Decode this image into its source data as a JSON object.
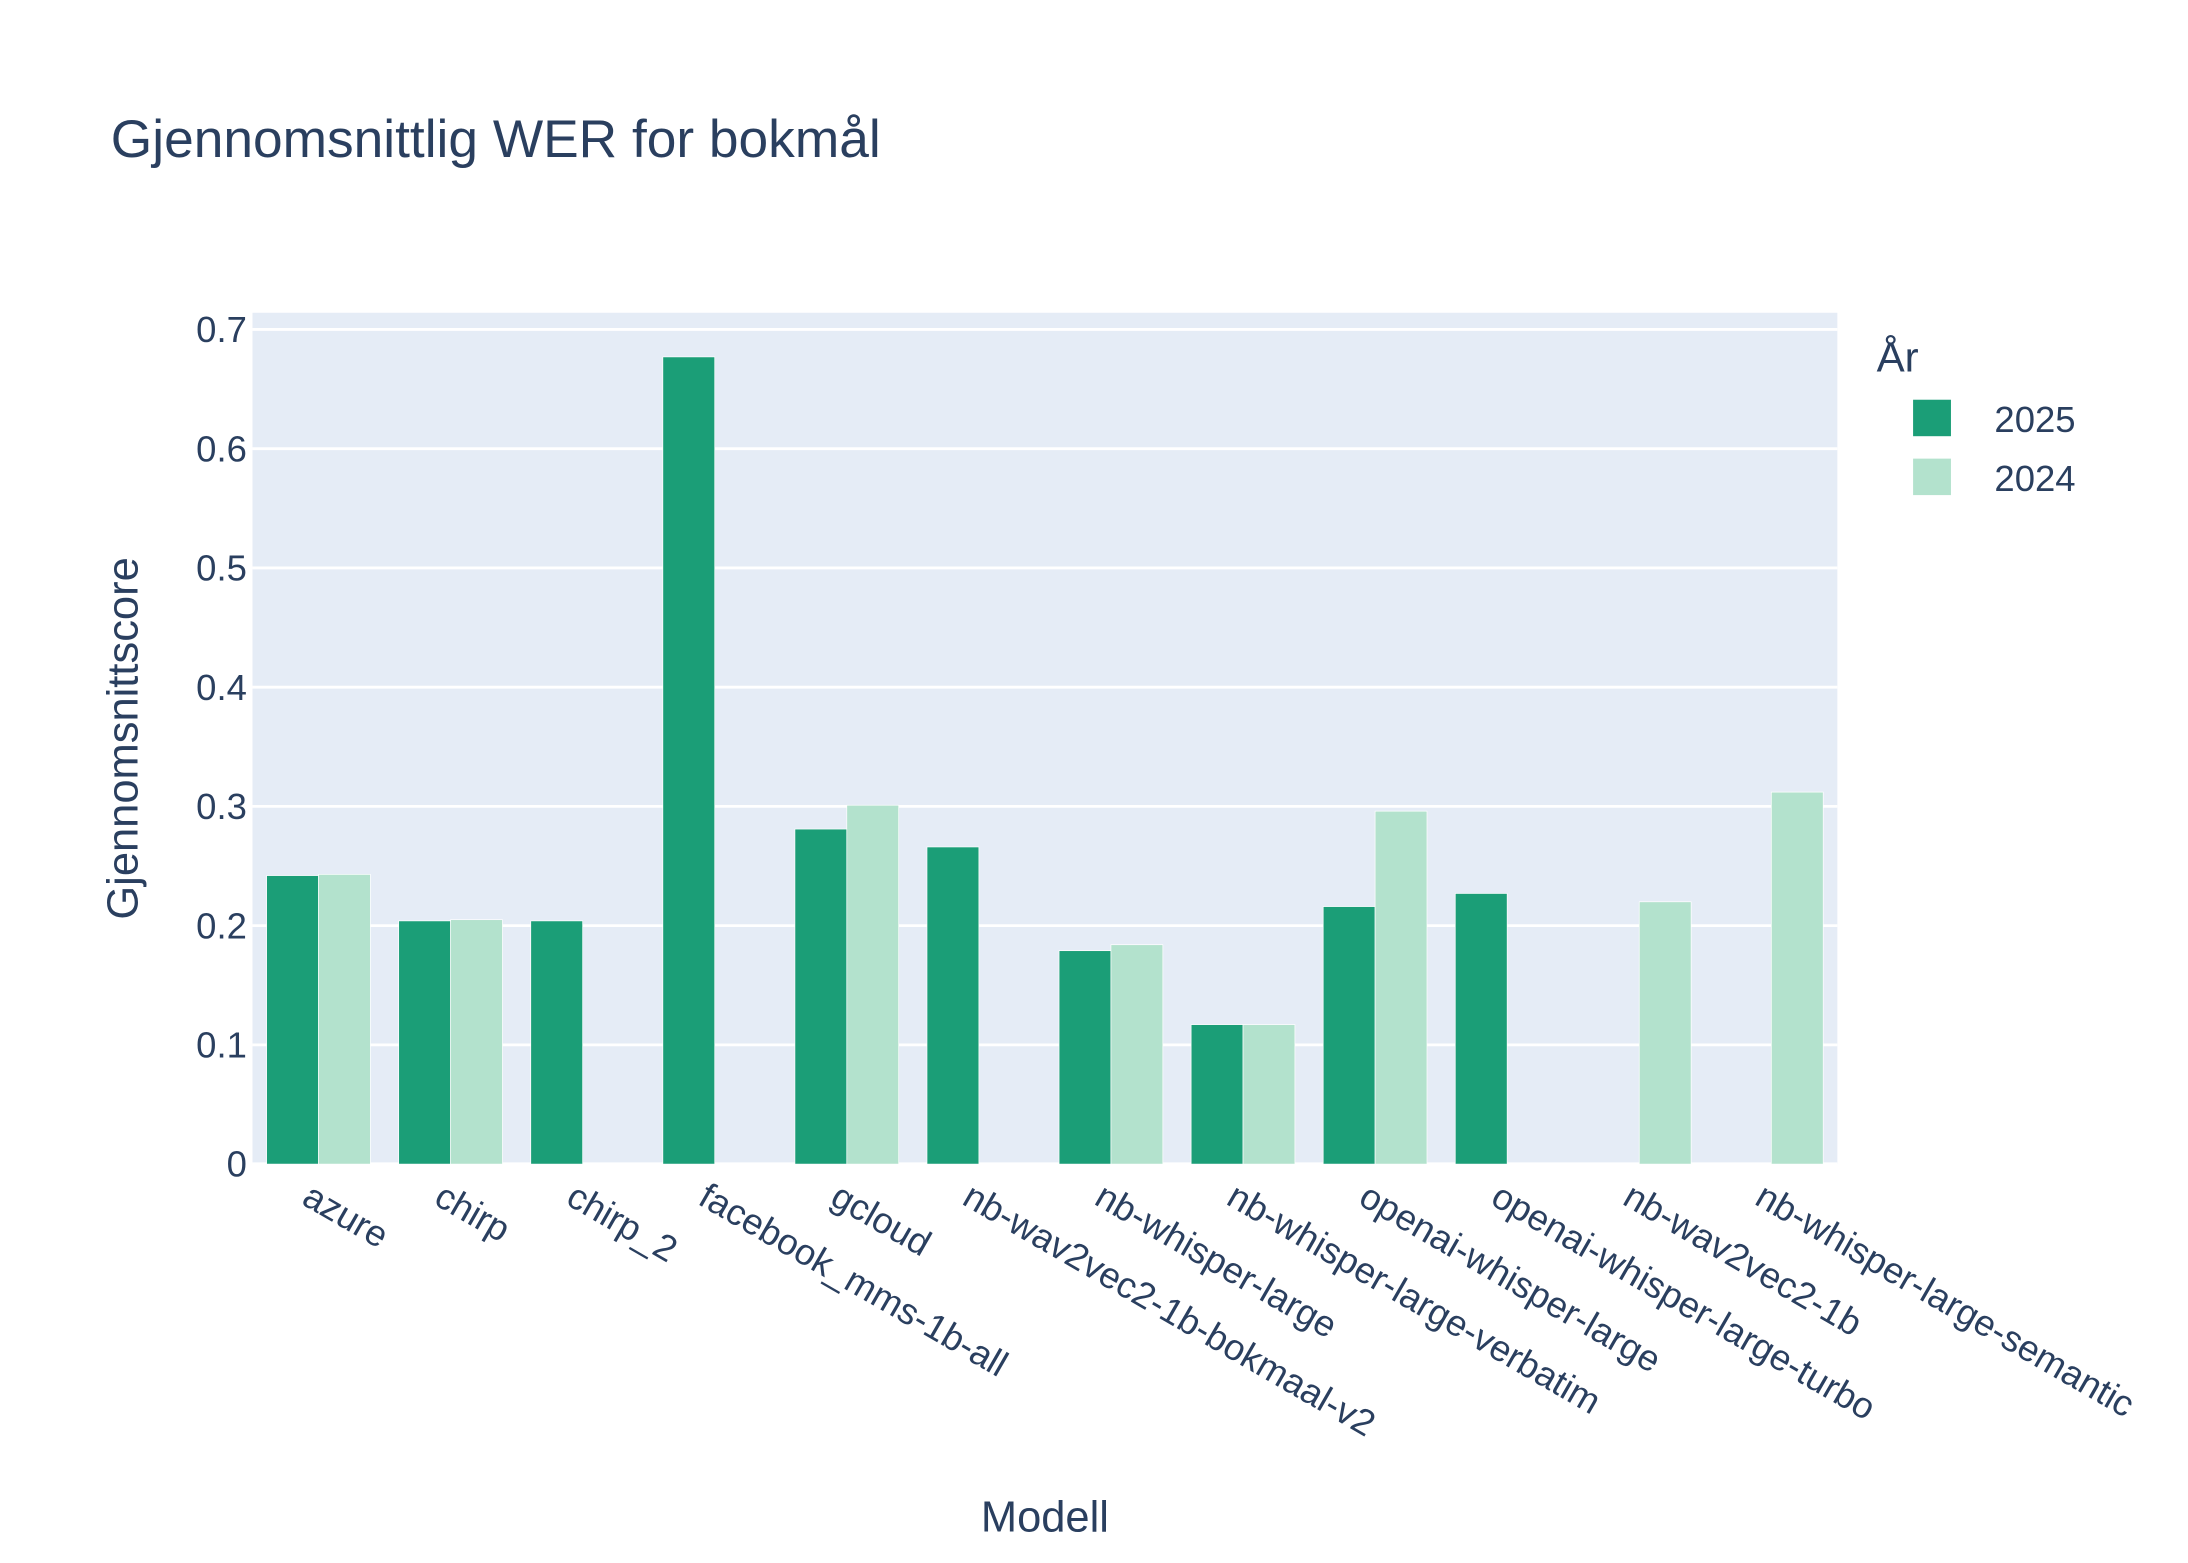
{
  "chart_data": {
    "type": "bar",
    "title": "Gjennomsnittlig WER for bokmål",
    "xlabel": "Modell",
    "ylabel": "Gjennomsnittscore",
    "categories": [
      "azure",
      "chirp",
      "chirp_2",
      "facebook_mms-1b-all",
      "gcloud",
      "nb-wav2vec2-1b-bokmaal-v2",
      "nb-whisper-large",
      "nb-whisper-large-verbatim",
      "openai-whisper-large",
      "openai-whisper-large-turbo",
      "nb-wav2vec2-1b",
      "nb-whisper-large-semantic"
    ],
    "series": [
      {
        "name": "2025",
        "color": "#1b9e77",
        "values": [
          0.242,
          0.204,
          0.204,
          0.677,
          0.281,
          0.266,
          0.179,
          0.117,
          0.216,
          0.227,
          null,
          null
        ]
      },
      {
        "name": "2024",
        "color": "#b3e2cd",
        "values": [
          0.243,
          0.205,
          null,
          null,
          0.301,
          null,
          0.184,
          0.117,
          0.296,
          null,
          0.22,
          0.312
        ]
      }
    ],
    "ylim": [
      0,
      0.714
    ],
    "yticks": [
      0,
      0.1,
      0.2,
      0.3,
      0.4,
      0.5,
      0.6,
      0.7
    ],
    "ytick_labels": [
      "0",
      "0.1",
      "0.2",
      "0.3",
      "0.4",
      "0.5",
      "0.6",
      "0.7"
    ],
    "legend": {
      "title": "År",
      "placement": "right"
    },
    "barmode": "group",
    "grid": true,
    "colors": {
      "plot_background": "#e5ecf6",
      "text": "#2a3f5f",
      "grid": "#ffffff"
    }
  }
}
